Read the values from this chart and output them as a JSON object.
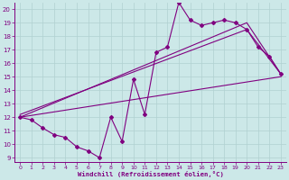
{
  "xlabel": "Windchill (Refroidissement éolien,°C)",
  "bg_color": "#cce8e8",
  "line_color": "#800080",
  "grid_color": "#b0d0d0",
  "xlim": [
    -0.5,
    23.5
  ],
  "ylim": [
    8.7,
    20.5
  ],
  "yticks": [
    9,
    10,
    11,
    12,
    13,
    14,
    15,
    16,
    17,
    18,
    19,
    20
  ],
  "xticks": [
    0,
    1,
    2,
    3,
    4,
    5,
    6,
    7,
    8,
    9,
    10,
    11,
    12,
    13,
    14,
    15,
    16,
    17,
    18,
    19,
    20,
    21,
    22,
    23
  ],
  "line1_x": [
    0,
    1,
    2,
    3,
    4,
    5,
    6,
    7,
    8,
    9,
    10,
    11,
    12,
    13,
    14,
    15,
    16,
    17,
    18,
    19,
    20,
    21,
    22,
    23
  ],
  "line1_y": [
    12.0,
    11.8,
    11.2,
    10.7,
    10.5,
    9.8,
    9.5,
    9.0,
    12.0,
    10.2,
    14.8,
    12.2,
    16.8,
    17.2,
    20.5,
    19.2,
    18.8,
    19.0,
    19.2,
    19.0,
    18.5,
    17.2,
    16.5,
    15.2
  ],
  "line2_x": [
    0,
    20,
    23
  ],
  "line2_y": [
    12.0,
    19.0,
    15.2
  ],
  "line3_x": [
    0,
    20,
    23
  ],
  "line3_y": [
    12.2,
    18.5,
    15.2
  ],
  "line4_x": [
    0,
    23
  ],
  "line4_y": [
    12.0,
    15.0
  ]
}
